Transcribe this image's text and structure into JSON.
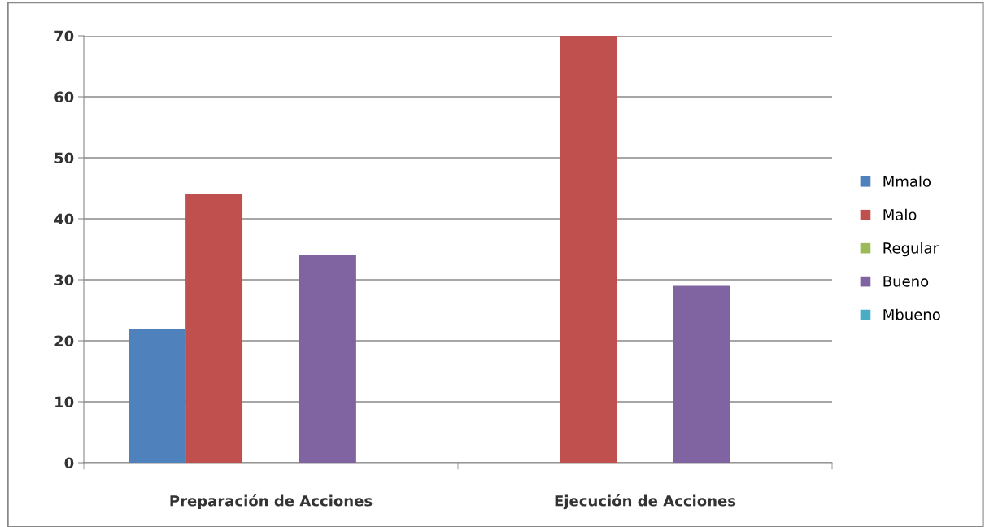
{
  "chart_data": {
    "type": "bar",
    "categories": [
      "Preparación de Acciones",
      "Ejecución de Acciones"
    ],
    "series": [
      {
        "name": "Mmalo",
        "color": "#4f81bd",
        "values": [
          22,
          0
        ]
      },
      {
        "name": "Malo",
        "color": "#c0504d",
        "values": [
          44,
          70
        ]
      },
      {
        "name": "Regular",
        "color": "#9bbb59",
        "values": [
          0,
          0
        ]
      },
      {
        "name": "Bueno",
        "color": "#8064a2",
        "values": [
          34,
          29
        ]
      },
      {
        "name": "Mbueno",
        "color": "#4bacc6",
        "values": [
          0,
          0
        ]
      }
    ],
    "ylim": [
      0,
      70
    ],
    "yticks": [
      0,
      10,
      20,
      30,
      40,
      50,
      60,
      70
    ],
    "grid": "y",
    "legend": "right"
  }
}
